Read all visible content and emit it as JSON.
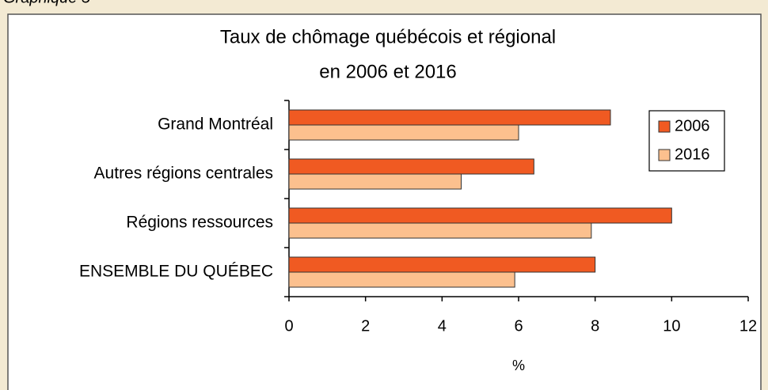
{
  "caption": "Graphique 5",
  "chart_data": {
    "type": "hbar",
    "title": [
      "Taux de chômage québécois et régional",
      "en 2006 et 2016"
    ],
    "categories": [
      "Grand Montréal",
      "Autres régions centrales",
      "Régions ressources",
      "ENSEMBLE DU QUÉBEC"
    ],
    "series": [
      {
        "name": "2006",
        "color": "#f05a22",
        "values": [
          8.4,
          6.4,
          10.0,
          8.0
        ]
      },
      {
        "name": "2016",
        "color": "#fcc08e",
        "values": [
          6.0,
          4.5,
          7.9,
          5.9
        ]
      }
    ],
    "xlabel": "%",
    "xlim": [
      0,
      12
    ],
    "xticks": [
      0,
      2,
      4,
      6,
      8,
      10,
      12
    ],
    "legend": "top-right"
  }
}
